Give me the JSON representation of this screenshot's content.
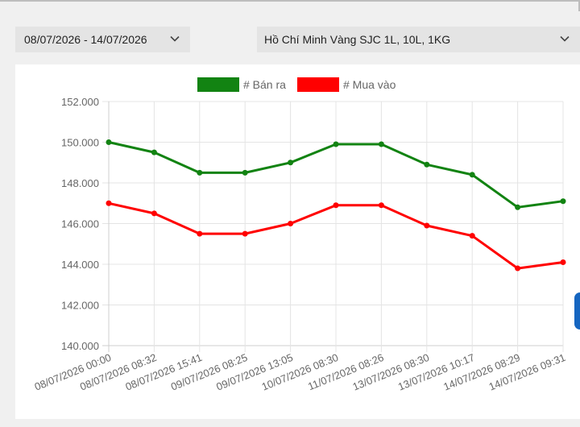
{
  "filters": {
    "date_range": "08/07/2026 - 14/07/2026",
    "product": "Hồ Chí Minh Vàng SJC 1L, 10L, 1KG",
    "chevron_icon": "chevron-down-icon"
  },
  "chart_data": {
    "type": "line",
    "categories": [
      "08/07/2026 00:00",
      "08/07/2026 08:32",
      "08/07/2026 15:41",
      "09/07/2026 08:25",
      "09/07/2026 13:05",
      "10/07/2026 08:30",
      "11/07/2026 08:26",
      "13/07/2026 08:30",
      "13/07/2026 10:17",
      "14/07/2026 08:29",
      "14/07/2026 09:31"
    ],
    "series": [
      {
        "name": "# Bán ra",
        "color": "#128312",
        "values": [
          150000,
          149500,
          148500,
          148500,
          149000,
          149900,
          149900,
          148900,
          148400,
          146800,
          147100
        ]
      },
      {
        "name": "# Mua vào",
        "color": "#ff0000",
        "values": [
          147000,
          146500,
          145500,
          145500,
          146000,
          146900,
          146900,
          145900,
          145400,
          143800,
          144100
        ]
      }
    ],
    "yticks": [
      "140.000",
      "142.000",
      "144.000",
      "146.000",
      "148.000",
      "150.000",
      "152.000"
    ],
    "ylim": [
      140000,
      152000
    ],
    "grid": true,
    "legend_position": "top-center"
  }
}
